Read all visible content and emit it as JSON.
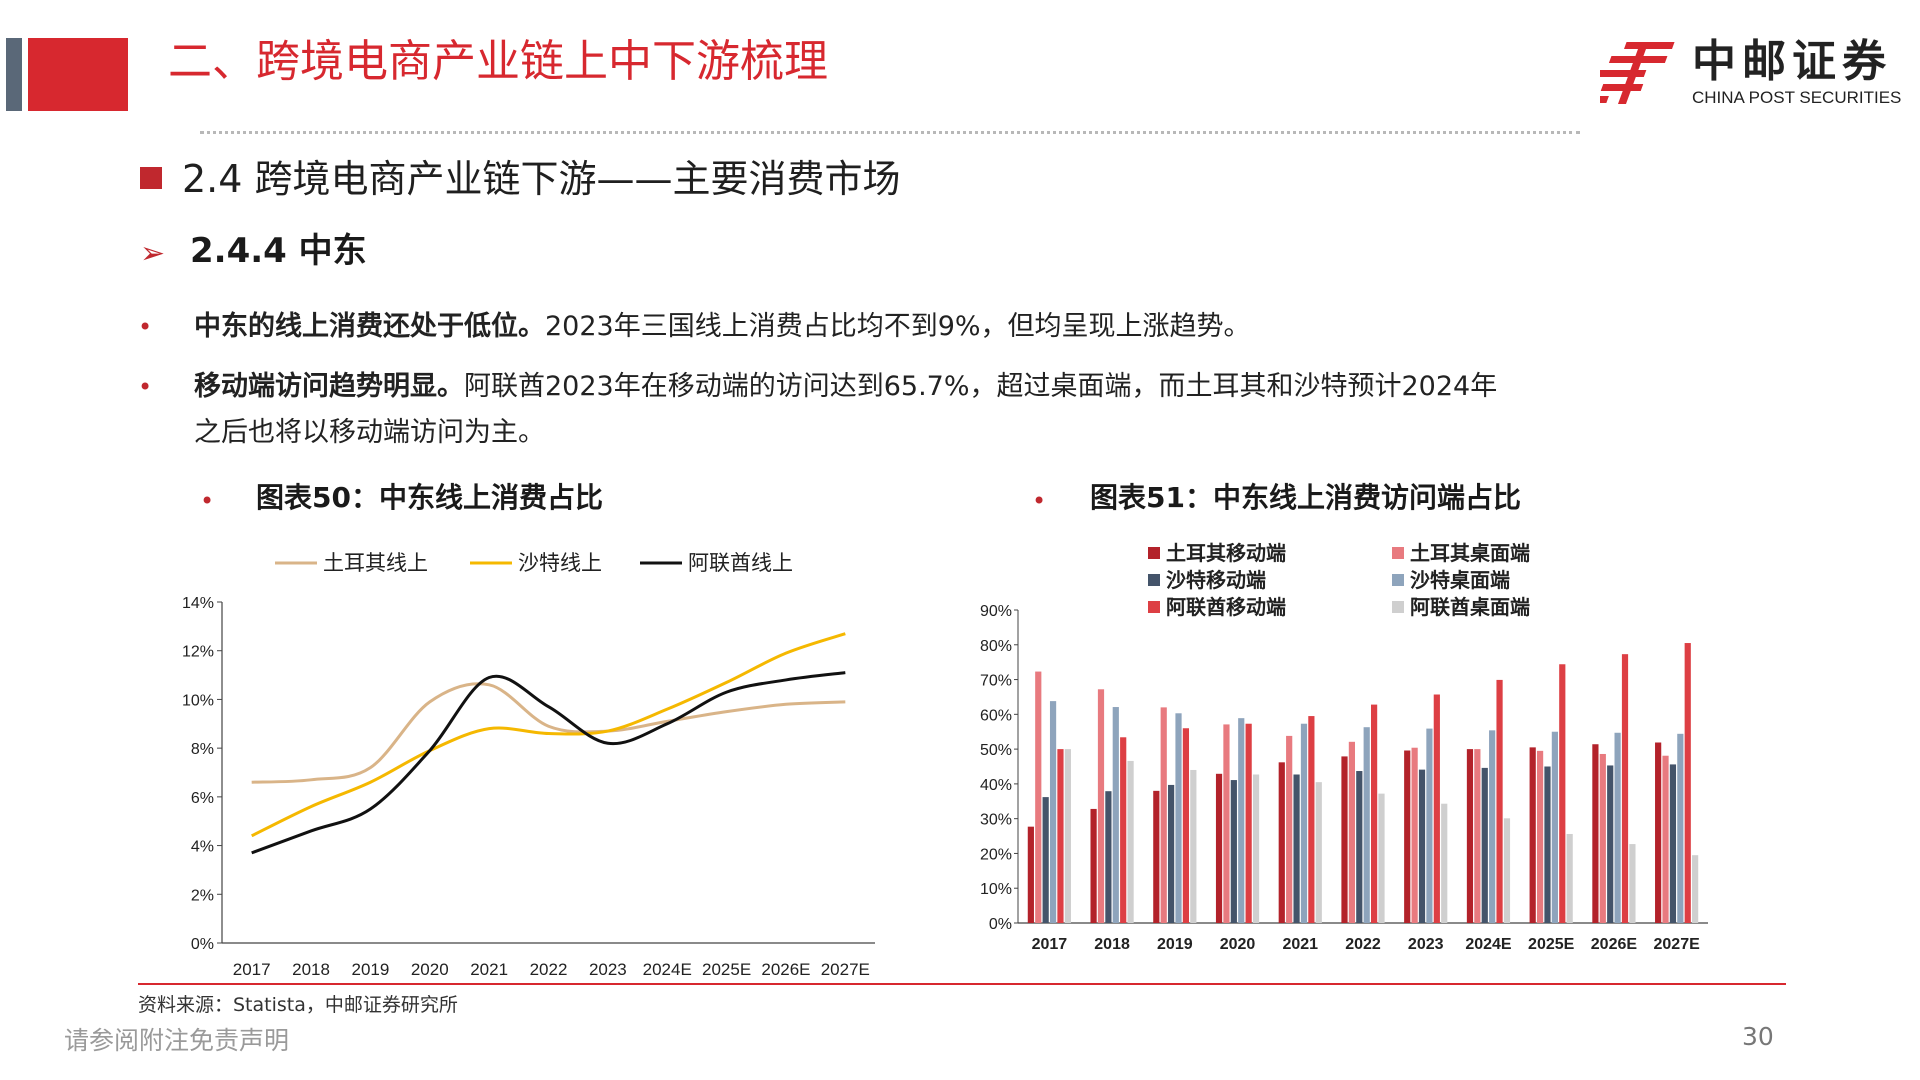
{
  "header": {
    "title": "二、跨境电商产业链上中下游梳理",
    "logo_cn": "中邮证券",
    "logo_en": "CHINA POST SECURITIES"
  },
  "section": {
    "title": "2.4  跨境电商产业链下游——主要消费市场",
    "subtitle": "2.4.4  中东"
  },
  "bullets": [
    {
      "marker": "•",
      "bold": "中东的线上消费还处于低位。",
      "text": "2023年三国线上消费占比均不到9%，但均呈现上涨趋势。",
      "text2": ""
    },
    {
      "marker": "•",
      "bold": "移动端访问趋势明显。",
      "text": "阿联酋2023年在移动端的访问达到65.7%，超过桌面端，而土耳其和沙特预计2024年",
      "text2": "之后也将以移动端访问为主。"
    }
  ],
  "chart1_title": {
    "marker": "•",
    "text": "图表50：中东线上消费占比"
  },
  "chart2_title": {
    "marker": "•",
    "text": "图表51：中东线上消费访问端占比"
  },
  "chart_data": [
    {
      "type": "line",
      "title": "",
      "categories": [
        "2017",
        "2018",
        "2019",
        "2020",
        "2021",
        "2022",
        "2023",
        "2024E",
        "2025E",
        "2026E",
        "2027E"
      ],
      "y_ticks": [
        "0%",
        "2%",
        "4%",
        "6%",
        "8%",
        "10%",
        "12%",
        "14%"
      ],
      "ylim": [
        0,
        14
      ],
      "unit": "%",
      "legend_position": "top",
      "series": [
        {
          "name": "土耳其线上",
          "color": "#d9b488",
          "values": [
            6.6,
            6.7,
            7.2,
            9.9,
            10.6,
            8.9,
            8.7,
            9.1,
            9.5,
            9.8,
            9.9
          ]
        },
        {
          "name": "沙特线上",
          "color": "#f5b800",
          "values": [
            4.4,
            5.6,
            6.6,
            7.9,
            8.8,
            8.6,
            8.7,
            9.6,
            10.7,
            11.9,
            12.7
          ]
        },
        {
          "name": "阿联酋线上",
          "color": "#111111",
          "values": [
            3.7,
            4.6,
            5.5,
            7.9,
            10.9,
            9.7,
            8.2,
            9.0,
            10.3,
            10.8,
            11.1
          ]
        }
      ]
    },
    {
      "type": "bar",
      "title": "",
      "categories": [
        "2017",
        "2018",
        "2019",
        "2020",
        "2021",
        "2022",
        "2023",
        "2024E",
        "2025E",
        "2026E",
        "2027E"
      ],
      "y_ticks": [
        "0%",
        "10%",
        "20%",
        "30%",
        "40%",
        "50%",
        "60%",
        "70%",
        "80%",
        "90%"
      ],
      "ylim": [
        0,
        90
      ],
      "unit": "%",
      "legend_position": "top",
      "series": [
        {
          "name": "土耳其移动端",
          "color": "#b3222a",
          "values": [
            27.7,
            32.8,
            38.0,
            42.9,
            46.2,
            47.9,
            49.6,
            50.0,
            50.5,
            51.4,
            51.9
          ]
        },
        {
          "name": "土耳其桌面端",
          "color": "#e87a7f",
          "values": [
            72.3,
            67.2,
            62.0,
            57.1,
            53.8,
            52.1,
            50.4,
            50.0,
            49.5,
            48.6,
            48.1
          ]
        },
        {
          "name": "沙特移动端",
          "color": "#44546a",
          "values": [
            36.2,
            37.9,
            39.7,
            41.1,
            42.7,
            43.7,
            44.1,
            44.6,
            45.0,
            45.3,
            45.6
          ]
        },
        {
          "name": "沙特桌面端",
          "color": "#8ea4bc",
          "values": [
            63.8,
            62.1,
            60.3,
            58.9,
            57.3,
            56.3,
            55.9,
            55.4,
            55.0,
            54.7,
            54.4
          ]
        },
        {
          "name": "阿联酋移动端",
          "color": "#dd3f44",
          "values": [
            50.0,
            53.4,
            56.0,
            57.3,
            59.5,
            62.8,
            65.7,
            69.9,
            74.4,
            77.3,
            80.5
          ]
        },
        {
          "name": "阿联酋桌面端",
          "color": "#cfcfcf",
          "values": [
            50.0,
            46.6,
            44.0,
            42.7,
            40.5,
            37.2,
            34.3,
            30.1,
            25.6,
            22.7,
            19.5
          ]
        }
      ]
    }
  ],
  "source": "资料来源：Statista，中邮证券研究所",
  "footer": {
    "disclaimer": "请参阅附注免责声明",
    "page": "30"
  }
}
